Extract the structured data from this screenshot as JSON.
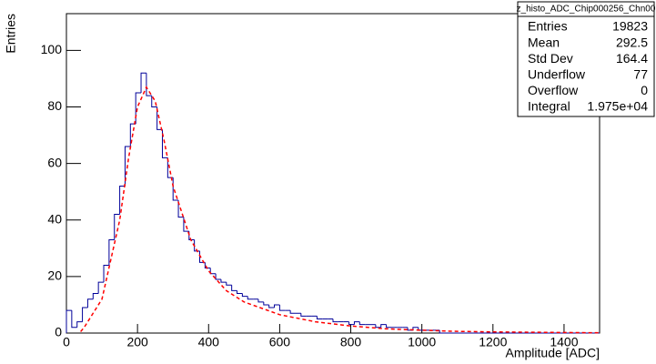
{
  "chart_data": {
    "type": "histogram",
    "xlabel": "Amplitude [ADC]",
    "ylabel": "Entries",
    "color": "#000099",
    "bins": [
      0,
      15,
      30,
      45,
      60,
      75,
      90,
      105,
      120,
      135,
      150,
      165,
      180,
      195,
      210,
      225,
      240,
      255,
      270,
      285,
      300,
      315,
      330,
      345,
      360,
      375,
      390,
      405,
      420,
      435,
      450,
      465,
      480,
      495,
      510,
      525,
      540,
      555,
      570,
      585,
      600,
      615,
      630,
      645,
      660,
      675,
      690,
      705,
      720,
      735,
      750,
      765,
      780,
      795,
      810,
      825,
      840,
      855,
      870,
      885,
      900,
      915,
      930,
      945,
      960,
      975,
      990,
      1005,
      1020,
      1035,
      1050,
      1065,
      1080,
      1095,
      1110,
      1125,
      1140,
      1155,
      1170,
      1185,
      1200,
      1215,
      1230,
      1245,
      1260,
      1275,
      1290,
      1305,
      1320,
      1335,
      1350,
      1365,
      1380,
      1395,
      1410,
      1425,
      1440,
      1455,
      1470,
      1485,
      1500
    ],
    "values": [
      8,
      2,
      4,
      9,
      12,
      14,
      18,
      24,
      33,
      42,
      52,
      66,
      74,
      85,
      92,
      84,
      80,
      72,
      62,
      55,
      47,
      41,
      36,
      33,
      29,
      25,
      23,
      21,
      19,
      18,
      17,
      15,
      14,
      13,
      12,
      12,
      11,
      10,
      9,
      10,
      8,
      8,
      7,
      7,
      6,
      6,
      6,
      5,
      5,
      5,
      4,
      4,
      4,
      3,
      4,
      3,
      3,
      3,
      2,
      3,
      2,
      2,
      2,
      2,
      1,
      2,
      1,
      1,
      1,
      1,
      0,
      0,
      0,
      0,
      0,
      0,
      0,
      0,
      0,
      0,
      0,
      0,
      0,
      0,
      0,
      0,
      0,
      0,
      0,
      0,
      0,
      0,
      0,
      0,
      0,
      0,
      0,
      0,
      0,
      0
    ],
    "overlay": {
      "type": "line",
      "color": "#ff0000",
      "x": [
        40,
        50,
        100,
        150,
        175,
        200,
        225,
        250,
        275,
        300,
        350,
        400,
        450,
        500,
        600,
        700,
        800,
        900,
        1000,
        1100,
        1200,
        1300,
        1400,
        1500
      ],
      "values": [
        0.5,
        2,
        12,
        40,
        62,
        80,
        87,
        82,
        68,
        52,
        33,
        22,
        15,
        11,
        6.5,
        4,
        2.5,
        1.5,
        1,
        0.6,
        0.4,
        0.3,
        0.2,
        0.1
      ]
    },
    "xlim": [
      0,
      1500
    ],
    "ylim": [
      0,
      113
    ],
    "xticks": [
      0,
      200,
      400,
      600,
      800,
      1000,
      1200,
      1400
    ],
    "yticks": [
      0,
      20,
      40,
      60,
      80,
      100
    ],
    "stats": {
      "title": "z_histo_ADC_Chip000256_Chn00",
      "rows": [
        {
          "label": "Entries",
          "value": 19823
        },
        {
          "label": "Mean",
          "value": 292.5
        },
        {
          "label": "Std Dev",
          "value": 164.4
        },
        {
          "label": "Underflow",
          "value": 77
        },
        {
          "label": "Overflow",
          "value": 0
        },
        {
          "label": "Integral",
          "value": {
            "value": 19750,
            "label": "1.975e+04"
          }
        }
      ]
    }
  }
}
